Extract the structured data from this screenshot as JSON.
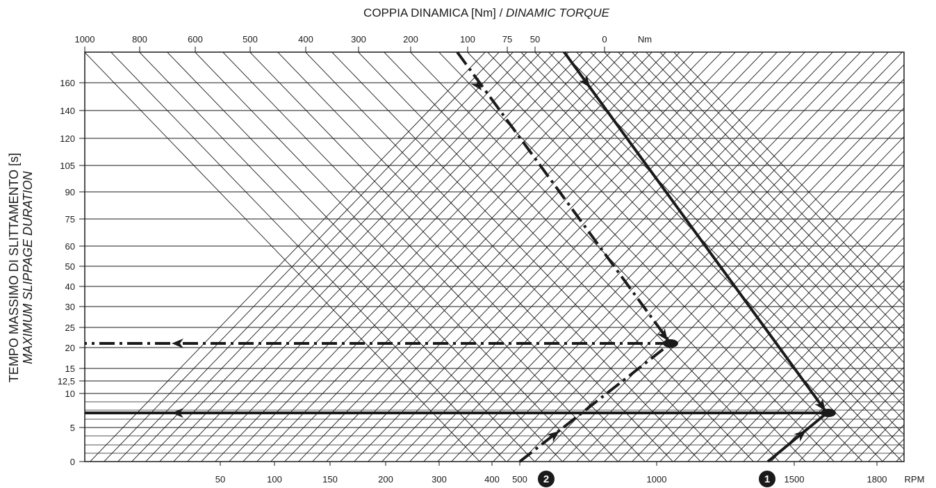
{
  "chart_data": {
    "type": "line",
    "title_main": "COPPIA DINAMICA [Nm] / ",
    "title_italic": "DINAMIC TORQUE",
    "ylabel_main": "TEMPO MASSIMO DI SLITTAMENTO [s]",
    "ylabel_italic": "MAXIMUM SLIPPAGE DURATION",
    "top_axis": {
      "unit": "Nm",
      "ticks": [
        "1000",
        "800",
        "600",
        "500",
        "400",
        "300",
        "200",
        "100",
        "75",
        "50",
        "0"
      ]
    },
    "bottom_axis": {
      "unit": "RPM",
      "ticks": [
        "50",
        "100",
        "150",
        "200",
        "300",
        "400",
        "500",
        "1000",
        "1500",
        "1800"
      ]
    },
    "y_axis": {
      "ticks": [
        "0",
        "5",
        "10",
        "12,5",
        "15",
        "20",
        "25",
        "30",
        "40",
        "50",
        "60",
        "75",
        "90",
        "105",
        "120",
        "140",
        "160"
      ]
    },
    "example_paths": [
      {
        "marker": "1",
        "style": "solid",
        "start_rpm": "1500",
        "torque_nm": "0",
        "slippage_time_s": 7
      },
      {
        "marker": "2",
        "style": "dash-dot",
        "start_rpm": "500",
        "torque_nm": "100",
        "slippage_time_s": 21
      }
    ],
    "grid": true,
    "colors": {
      "ink": "#1a1a1a",
      "background": "#ffffff"
    }
  }
}
